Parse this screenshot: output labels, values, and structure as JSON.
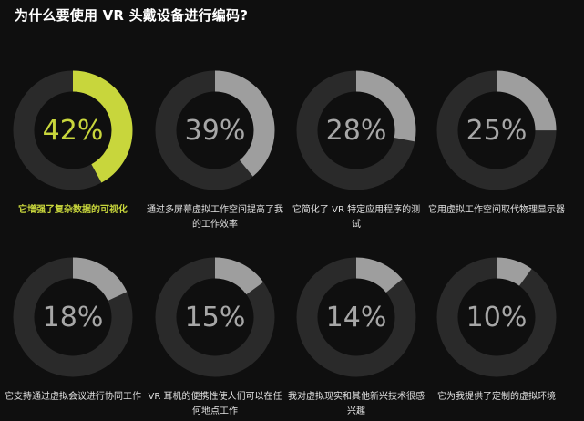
{
  "title": "为什么要使用 VR 头戴设备进行编码?",
  "colors": {
    "highlight": "#c8d63c",
    "arc": "#9e9e9e",
    "track": "#2a2a2a",
    "background": "#0f0f0f"
  },
  "chart_data": {
    "type": "donut",
    "title": "为什么要使用 VR 头戴设备进行编码?",
    "items": [
      {
        "label": "它增强了复杂数据的可视化",
        "value": 42,
        "display": "42%",
        "highlight": true
      },
      {
        "label": "通过多屏幕虚拟工作空间提高了我的工作效率",
        "value": 39,
        "display": "39%",
        "highlight": false
      },
      {
        "label": "它简化了 VR 特定应用程序的测试",
        "value": 28,
        "display": "28%",
        "highlight": false
      },
      {
        "label": "它用虚拟工作空间取代物理显示器",
        "value": 25,
        "display": "25%",
        "highlight": false
      },
      {
        "label": "它支持通过虚拟会议进行协同工作",
        "value": 18,
        "display": "18%",
        "highlight": false
      },
      {
        "label": "VR 耳机的便携性使人们可以在任何地点工作",
        "value": 15,
        "display": "15%",
        "highlight": false
      },
      {
        "label": "我对虚拟现实和其他新兴技术很感兴趣",
        "value": 14,
        "display": "14%",
        "highlight": false
      },
      {
        "label": "它为我提供了定制的虚拟环境",
        "value": 10,
        "display": "10%",
        "highlight": false
      }
    ]
  }
}
